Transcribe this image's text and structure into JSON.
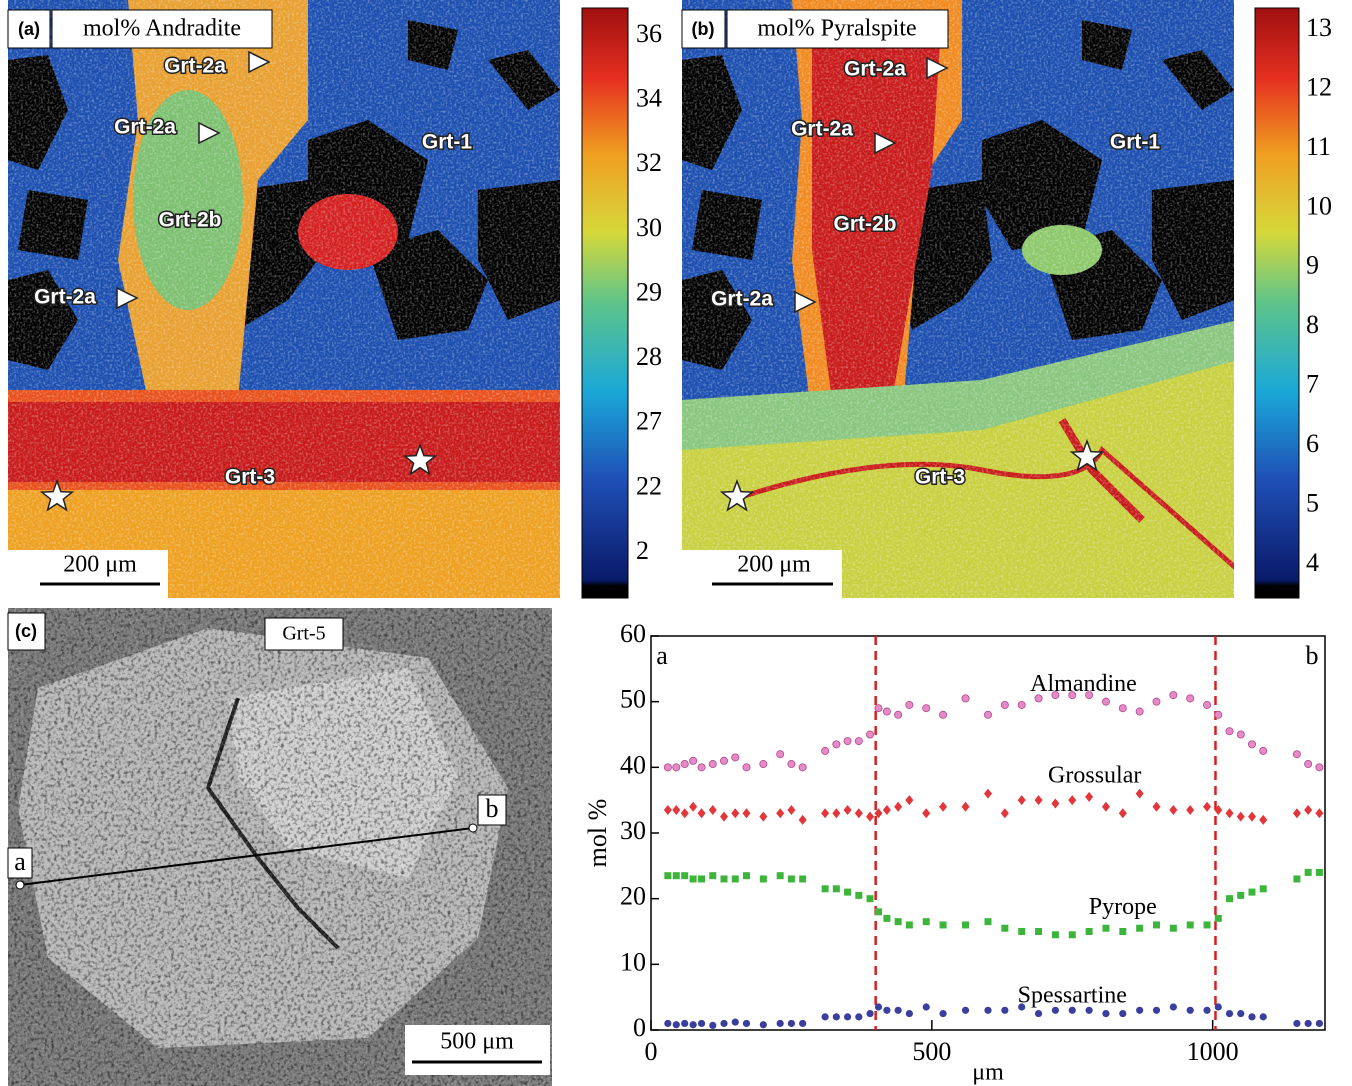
{
  "panels": {
    "a": {
      "label": "(a)",
      "title": "mol% Andradite",
      "annotations": [
        "Grt-2a",
        "Grt-2a",
        "Grt-1",
        "Grt-2b",
        "Grt-2a",
        "Grt-3"
      ],
      "scale_bar": "200 μm",
      "colorbar_ticks": [
        36,
        34,
        32,
        30,
        29,
        28,
        27,
        22,
        2
      ]
    },
    "b": {
      "label": "(b)",
      "title": "mol% Pyralspite",
      "annotations": [
        "Grt-2a",
        "Grt-2a",
        "Grt-1",
        "Grt-2b",
        "Grt-2a",
        "Grt-3"
      ],
      "scale_bar": "200 μm",
      "colorbar_ticks": [
        13,
        12,
        11,
        10,
        9,
        8,
        7,
        6,
        5,
        4
      ]
    },
    "c": {
      "label": "(c)",
      "title": "Grt-5",
      "points": [
        "a",
        "b"
      ],
      "scale_bar": "500 μm"
    }
  },
  "chart_data": {
    "type": "scatter",
    "xlabel": "μm",
    "ylabel": "mol %",
    "xlim": [
      0,
      1200
    ],
    "ylim": [
      0,
      60
    ],
    "xticks": [
      0,
      500,
      1000
    ],
    "yticks": [
      0,
      10,
      20,
      30,
      40,
      50,
      60
    ],
    "corner_labels": [
      "a",
      "b"
    ],
    "vlines": [
      400,
      1005
    ],
    "vline_color": "#d42020",
    "x": [
      30,
      45,
      60,
      75,
      90,
      110,
      130,
      150,
      170,
      200,
      230,
      250,
      270,
      310,
      330,
      350,
      370,
      390,
      405,
      420,
      440,
      460,
      490,
      520,
      560,
      600,
      630,
      660,
      690,
      720,
      750,
      780,
      810,
      840,
      870,
      900,
      930,
      960,
      990,
      1010,
      1030,
      1050,
      1070,
      1090,
      1150,
      1170,
      1190
    ],
    "series": [
      {
        "name": "Almandine",
        "color": "#e58ac6",
        "marker": "circle",
        "values": [
          40,
          40,
          40.5,
          41,
          40,
          40.5,
          41,
          41.5,
          40,
          40.5,
          42,
          40.5,
          40,
          42.5,
          43.5,
          44,
          44,
          45,
          49,
          48.5,
          48,
          49.5,
          49,
          48,
          50.5,
          48,
          49.5,
          49.5,
          50.5,
          51,
          51,
          51,
          50,
          49,
          48.5,
          50,
          51,
          50.5,
          49.5,
          48,
          45.5,
          45,
          43.5,
          42.5,
          42,
          40.5,
          40
        ]
      },
      {
        "name": "Grossular",
        "color": "#e2363a",
        "marker": "diamond",
        "values": [
          33.5,
          33.5,
          33,
          34,
          33,
          33.5,
          32.5,
          33,
          33,
          32.5,
          33,
          33.5,
          32,
          33,
          33,
          33.5,
          33,
          32.5,
          33,
          33.5,
          34,
          35,
          33,
          34,
          34,
          36,
          33,
          35,
          35,
          34.5,
          35,
          35.5,
          34,
          33,
          36,
          34,
          33.5,
          33.5,
          34,
          33.5,
          33,
          32.5,
          32.5,
          32,
          33,
          33.5,
          33
        ]
      },
      {
        "name": "Pyrope",
        "color": "#3db53a",
        "marker": "square",
        "values": [
          23.5,
          23.5,
          23.5,
          23,
          23,
          23.5,
          23,
          23,
          23.5,
          23,
          23.5,
          23,
          23,
          21.5,
          21.5,
          21,
          20.5,
          20,
          18,
          17,
          16.5,
          16,
          16.5,
          16,
          16,
          16.5,
          15.5,
          15,
          15,
          14.5,
          14.5,
          15,
          15.5,
          15,
          15.5,
          16,
          15.5,
          16,
          16,
          17,
          20,
          20.5,
          21,
          21.5,
          23,
          24,
          24
        ]
      },
      {
        "name": "Spessartine",
        "color": "#3a3f9e",
        "marker": "circle",
        "values": [
          1,
          0.8,
          1,
          0.8,
          1,
          0.7,
          1,
          1.2,
          1,
          0.8,
          1,
          1,
          1,
          2,
          2,
          2,
          2,
          2.5,
          3.5,
          3,
          3,
          2.5,
          3.5,
          2.5,
          3,
          3,
          3,
          3.5,
          2.5,
          3,
          3,
          3,
          2.5,
          2.5,
          3,
          3,
          3.5,
          3,
          3,
          3.5,
          2.5,
          2.5,
          2,
          2,
          1,
          1,
          1
        ]
      }
    ]
  }
}
